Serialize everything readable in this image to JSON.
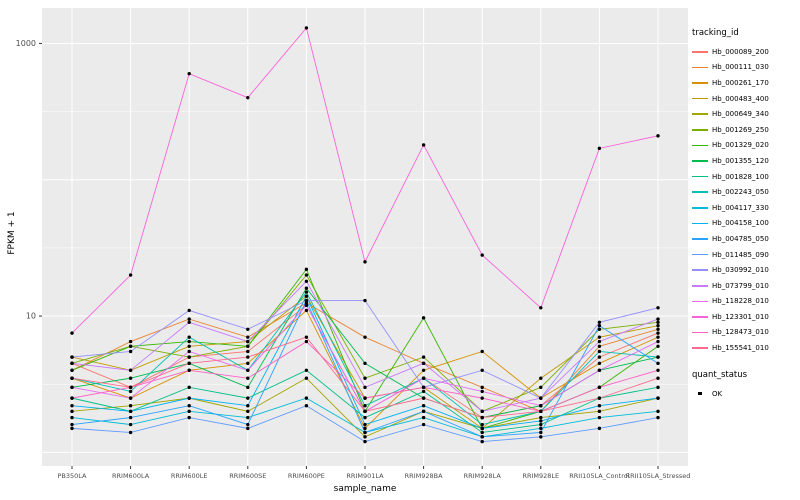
{
  "chart_data": {
    "type": "line",
    "title": "",
    "xlabel": "sample_name",
    "ylabel": "FPKM + 1",
    "y_scale": "log10",
    "y_domain_log10": [
      -0.1,
      3.26
    ],
    "y_ticks": [
      {
        "value": 10,
        "label": "10"
      },
      {
        "value": 1000,
        "label": "1000"
      }
    ],
    "grid": true,
    "panel_bg": "#EBEBEB",
    "grid_color": "#FFFFFF",
    "point_color": "#000000",
    "tick_label_color": "#4D4D4D",
    "legend_position": "right",
    "categories": [
      "PB350LA",
      "RRIM600LA",
      "RRIM600LE",
      "RRIM600SE",
      "RRIM600PE",
      "RRIM901LA",
      "RRIM928BA",
      "RRIM928LA",
      "RRIM928LE",
      "RRII105LA_Control",
      "RRII105LA_Stressed"
    ],
    "series": [
      {
        "name": "Hb_000089_200",
        "color": "#F8766D",
        "values": [
          4.5,
          3.0,
          5.0,
          5.5,
          12,
          2.0,
          3.5,
          1.8,
          2.2,
          5.0,
          7.5
        ]
      },
      {
        "name": "Hb_000111_030",
        "color": "#EA8331",
        "values": [
          4.0,
          6.5,
          9.5,
          7.0,
          12.5,
          7.0,
          4.5,
          3.0,
          2.0,
          6.0,
          8.0
        ]
      },
      {
        "name": "Hb_000261_170",
        "color": "#D89000",
        "values": [
          3.5,
          2.5,
          4.0,
          4.5,
          11,
          1.5,
          4.0,
          5.5,
          2.5,
          4.5,
          7.0
        ]
      },
      {
        "name": "Hb_000483_400",
        "color": "#C09B00",
        "values": [
          5.0,
          4.0,
          6.0,
          6.5,
          14,
          2.5,
          3.0,
          1.5,
          3.5,
          7.0,
          8.5
        ]
      },
      {
        "name": "Hb_000649_340",
        "color": "#A3A500",
        "values": [
          2.0,
          2.2,
          2.5,
          2.0,
          3.5,
          1.3,
          2.0,
          1.5,
          1.8,
          2.0,
          2.5
        ]
      },
      {
        "name": "Hb_001269_250",
        "color": "#7CAE00",
        "values": [
          4.5,
          6.0,
          5.0,
          6.0,
          20,
          3.5,
          5.0,
          2.0,
          3.0,
          8.0,
          9.0
        ]
      },
      {
        "name": "Hb_001329_020",
        "color": "#39B600",
        "values": [
          4.0,
          6.0,
          6.5,
          6.0,
          22,
          2.0,
          9.7,
          1.5,
          2.0,
          3.0,
          6.0
        ]
      },
      {
        "name": "Hb_001355_120",
        "color": "#00BB4E",
        "values": [
          3.0,
          3.5,
          4.5,
          3.0,
          16,
          4.5,
          2.5,
          1.8,
          2.2,
          4.0,
          5.0
        ]
      },
      {
        "name": "Hb_001828_100",
        "color": "#00C087",
        "values": [
          2.5,
          2.0,
          3.0,
          2.5,
          4.0,
          1.8,
          2.8,
          1.4,
          1.6,
          2.5,
          3.0
        ]
      },
      {
        "name": "Hb_002243_050",
        "color": "#00C0B4",
        "values": [
          3.5,
          2.8,
          7.0,
          4.0,
          15,
          2.2,
          3.5,
          1.6,
          2.0,
          5.5,
          5.0
        ]
      },
      {
        "name": "Hb_004117_330",
        "color": "#00BCD8",
        "values": [
          1.8,
          1.6,
          2.0,
          1.8,
          2.5,
          1.4,
          1.8,
          1.3,
          1.5,
          1.8,
          2.0
        ]
      },
      {
        "name": "Hb_004158_100",
        "color": "#00B2F3",
        "values": [
          2.2,
          2.0,
          2.5,
          2.2,
          14,
          1.6,
          2.2,
          1.5,
          1.7,
          2.2,
          2.5
        ]
      },
      {
        "name": "Hb_004785_050",
        "color": "#29A3FF",
        "values": [
          1.6,
          1.8,
          2.2,
          1.6,
          13,
          1.4,
          2.0,
          1.3,
          1.4,
          8.5,
          4.5
        ]
      },
      {
        "name": "Hb_011485_090",
        "color": "#619CFF",
        "values": [
          1.5,
          1.4,
          1.8,
          1.5,
          2.2,
          1.2,
          1.6,
          1.2,
          1.3,
          1.5,
          1.8
        ]
      },
      {
        "name": "Hb_030992_010",
        "color": "#9590FF",
        "values": [
          5.0,
          5.5,
          11,
          8.0,
          13,
          13,
          3.0,
          4.0,
          2.5,
          9.0,
          11.5
        ]
      },
      {
        "name": "Hb_073799_010",
        "color": "#C77CFF",
        "values": [
          4.5,
          4.0,
          9.0,
          6.5,
          18,
          3.0,
          4.5,
          2.0,
          2.5,
          6.5,
          9.5
        ]
      },
      {
        "name": "Hb_118228_010",
        "color": "#E76BF3",
        "values": [
          3.0,
          2.5,
          5.5,
          4.0,
          12,
          2.0,
          3.5,
          2.8,
          2.2,
          4.0,
          6.5
        ]
      },
      {
        "name": "Hb_123301_010",
        "color": "#FA62DB",
        "values": [
          7.5,
          20,
          600,
          400,
          1300,
          25,
          180,
          28,
          11.5,
          170,
          210
        ]
      },
      {
        "name": "Hb_128473_010",
        "color": "#FF61C7",
        "values": [
          2.5,
          3.0,
          4.0,
          3.5,
          6.5,
          2.5,
          3.0,
          2.5,
          2.0,
          3.0,
          4.0
        ]
      },
      {
        "name": "Hb_155541_010",
        "color": "#FF6B8F",
        "values": [
          3.5,
          3.0,
          4.5,
          5.0,
          7.0,
          2.0,
          2.5,
          1.8,
          2.0,
          2.5,
          3.5
        ]
      }
    ]
  },
  "legend": {
    "tracking_title": "tracking_id",
    "quant_title": "quant_status",
    "quant_items": [
      "OK"
    ]
  }
}
